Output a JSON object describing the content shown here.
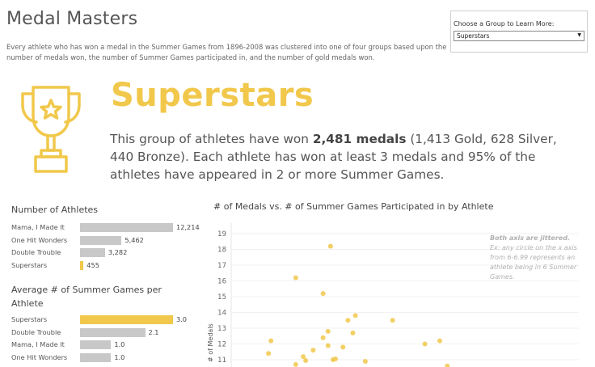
{
  "header": {
    "title": "Medal Masters",
    "subtitle": "Every athlete who has won a medal in the Summer Games from 1896-2008 was clustered into one of four groups based upon the number of medals won, the number of Summer Games participated in, and the number of gold medals won."
  },
  "group_picker": {
    "label": "Choose a Group to Learn More:",
    "selected": "Superstars"
  },
  "group": {
    "icon": "trophy-icon",
    "name": "Superstars",
    "desc_before": "This group of athletes have won ",
    "desc_bold": "2,481 medals",
    "desc_after": " (1,413 Gold, 628 Silver, 440 Bronze).  Each athlete has won at least 3 medals and 95% of the athletes have appeared in 2 or more Summer Games."
  },
  "colors": {
    "highlight": "#f1c84b",
    "bar": "#c8c8c8"
  },
  "athletes_chart": {
    "title": "Number of Athletes",
    "rows": [
      {
        "label": "Mama, I Made It",
        "value": 12214,
        "display": "12,214",
        "highlight": false
      },
      {
        "label": "One Hit Wonders",
        "value": 5462,
        "display": "5,462",
        "highlight": false
      },
      {
        "label": "Double Trouble",
        "value": 3282,
        "display": "3,282",
        "highlight": false
      },
      {
        "label": "Superstars",
        "value": 455,
        "display": "455",
        "highlight": true
      }
    ]
  },
  "games_chart": {
    "title": "Average # of Summer Games per Athlete",
    "rows": [
      {
        "label": "Superstars",
        "value": 3.0,
        "display": "3.0",
        "highlight": true
      },
      {
        "label": "Double Trouble",
        "value": 2.1,
        "display": "2.1",
        "highlight": false
      },
      {
        "label": "Mama, I Made It",
        "value": 1.0,
        "display": "1.0",
        "highlight": false
      },
      {
        "label": "One Hit Wonders",
        "value": 1.0,
        "display": "1.0",
        "highlight": false
      }
    ]
  },
  "chart_data": {
    "type": "scatter",
    "title": "# of Medals vs. # of Summer Games Participated in by Athlete",
    "ylabel": "# of Medals",
    "xlabel": "",
    "y_ticks": [
      19,
      18,
      17,
      16,
      15,
      14,
      13,
      12,
      11
    ],
    "ylim": [
      10.5,
      19.5
    ],
    "xlim": [
      1,
      8
    ],
    "note_bold": "Both axis are jittered.",
    "note": "Ex: any circle on the x axis from 6-6.99 represents an athlete being in 6 Summer Games.",
    "points": [
      {
        "x": 2.3,
        "y": 16.2
      },
      {
        "x": 3.0,
        "y": 18.2
      },
      {
        "x": 2.85,
        "y": 15.2
      },
      {
        "x": 3.35,
        "y": 13.5
      },
      {
        "x": 3.5,
        "y": 13.8
      },
      {
        "x": 3.45,
        "y": 12.7
      },
      {
        "x": 4.25,
        "y": 13.5
      },
      {
        "x": 4.9,
        "y": 12.0
      },
      {
        "x": 5.2,
        "y": 12.2
      },
      {
        "x": 5.35,
        "y": 10.6
      },
      {
        "x": 1.8,
        "y": 12.2
      },
      {
        "x": 1.75,
        "y": 11.4
      },
      {
        "x": 2.3,
        "y": 10.7
      },
      {
        "x": 2.45,
        "y": 11.2
      },
      {
        "x": 2.5,
        "y": 10.95
      },
      {
        "x": 2.65,
        "y": 11.6
      },
      {
        "x": 2.85,
        "y": 12.4
      },
      {
        "x": 2.95,
        "y": 12.8
      },
      {
        "x": 3.05,
        "y": 11.0
      },
      {
        "x": 3.1,
        "y": 11.05
      },
      {
        "x": 3.25,
        "y": 11.8
      },
      {
        "x": 2.95,
        "y": 11.9
      },
      {
        "x": 3.7,
        "y": 10.9
      }
    ]
  }
}
